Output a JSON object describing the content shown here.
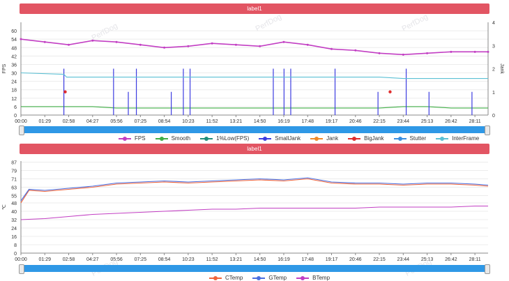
{
  "charts": [
    {
      "header": "label1",
      "watermark": "PerfDog"
    },
    {
      "header": "label1",
      "watermark": "PerfDog"
    }
  ],
  "chart_data": [
    {
      "type": "line",
      "title": "label1",
      "ylabel": "FPS",
      "y2label": "Jank",
      "ylim": [
        0,
        66
      ],
      "y_ticks": [
        0,
        6,
        12,
        18,
        24,
        30,
        36,
        42,
        48,
        54,
        60
      ],
      "y2lim": [
        0,
        4
      ],
      "y2_ticks": [
        0,
        1,
        2,
        3,
        4
      ],
      "x_ticks": [
        "00:00",
        "01:29",
        "02:58",
        "04:27",
        "05:56",
        "07:25",
        "08:54",
        "10:23",
        "11:52",
        "13:21",
        "14:50",
        "16:19",
        "17:48",
        "19:17",
        "20:46",
        "22:15",
        "23:44",
        "25:13",
        "26:42",
        "28:11"
      ],
      "legend_position": "bottom",
      "grid": true,
      "series": [
        {
          "name": "FPS",
          "color": "#c23ec3",
          "y_axis": "left",
          "x": [
            "00:00",
            "01:29",
            "02:58",
            "04:27",
            "05:56",
            "07:25",
            "08:54",
            "10:23",
            "11:52",
            "13:21",
            "14:50",
            "16:19",
            "17:48",
            "19:17",
            "20:46",
            "22:15",
            "23:44",
            "25:13",
            "26:42",
            "28:11",
            "29:00"
          ],
          "values": [
            54,
            52,
            50,
            53,
            52,
            50,
            48,
            49,
            51,
            50,
            49,
            52,
            50,
            47,
            46,
            44,
            43,
            44,
            45,
            45,
            45
          ]
        },
        {
          "name": "Smooth",
          "color": "#3fae45",
          "y_axis": "left",
          "x": [
            "00:00",
            "01:29",
            "02:58",
            "04:27",
            "05:56",
            "07:25",
            "08:54",
            "10:23",
            "11:52",
            "13:21",
            "14:50",
            "16:19",
            "17:48",
            "19:17",
            "20:46",
            "22:15",
            "23:44",
            "25:13",
            "26:42",
            "28:11",
            "29:00"
          ],
          "values": [
            6,
            6,
            6,
            6,
            5,
            5,
            5,
            5,
            5,
            5,
            5,
            5,
            5,
            5,
            5,
            5,
            6,
            6,
            5,
            5,
            5
          ]
        },
        {
          "name": "1%Low(FPS)",
          "color": "#1f8f7a",
          "y_axis": "left",
          "x": [
            "00:00",
            "01:29",
            "02:58",
            "04:27",
            "05:56",
            "07:25",
            "08:54",
            "10:23",
            "11:52",
            "13:21",
            "14:50",
            "16:19",
            "17:48",
            "19:17",
            "20:46",
            "22:15",
            "23:44",
            "25:13",
            "26:42",
            "28:11",
            "29:00"
          ],
          "values": [
            null,
            null,
            null,
            null,
            null,
            null,
            null,
            null,
            null,
            null,
            null,
            null,
            null,
            null,
            null,
            null,
            null,
            null,
            null,
            null,
            null
          ]
        },
        {
          "name": "SmallJank",
          "color": "#3c3ce0",
          "y_axis": "right",
          "x": [
            "02:40",
            "05:45",
            "06:40",
            "07:10",
            "09:20",
            "10:05",
            "10:30",
            "15:40",
            "16:20",
            "16:45",
            "19:30",
            "22:10",
            "23:55",
            "25:20",
            "28:00"
          ],
          "values": [
            2,
            2,
            1,
            2,
            1,
            2,
            2,
            2,
            2,
            2,
            2,
            1,
            2,
            1,
            1
          ]
        },
        {
          "name": "Jank",
          "color": "#f08a2a",
          "y_axis": "right",
          "x": [],
          "values": []
        },
        {
          "name": "BigJank",
          "color": "#e02d2d",
          "y_axis": "right",
          "x": [
            "02:45",
            "22:55"
          ],
          "values": [
            1,
            1
          ]
        },
        {
          "name": "Stutter",
          "color": "#3a8fe0",
          "y_axis": "right",
          "x": [],
          "values": []
        },
        {
          "name": "InterFrame",
          "color": "#5bc0d4",
          "y_axis": "left",
          "x": [
            "00:00",
            "02:40",
            "02:50",
            "05:56",
            "11:52",
            "17:48",
            "22:15",
            "23:44",
            "29:00"
          ],
          "values": [
            30,
            29,
            27,
            27,
            27,
            27,
            27,
            26,
            26
          ]
        }
      ]
    },
    {
      "type": "line",
      "title": "label1",
      "ylabel": "℃",
      "ylim": [
        0,
        88
      ],
      "y_ticks": [
        0,
        8,
        16,
        24,
        32,
        40,
        48,
        55,
        63,
        71,
        79,
        87
      ],
      "x_ticks": [
        "00:00",
        "01:29",
        "02:58",
        "04:27",
        "05:56",
        "07:25",
        "08:54",
        "10:23",
        "11:52",
        "13:21",
        "14:50",
        "16:19",
        "17:48",
        "19:17",
        "20:46",
        "22:15",
        "23:44",
        "25:13",
        "26:42",
        "28:11"
      ],
      "legend_position": "bottom",
      "grid": true,
      "series": [
        {
          "name": "CTemp",
          "color": "#f0643a",
          "x": [
            "00:00",
            "00:30",
            "01:29",
            "02:58",
            "04:27",
            "05:56",
            "07:25",
            "08:54",
            "10:23",
            "11:52",
            "13:21",
            "14:50",
            "16:19",
            "17:48",
            "19:17",
            "20:46",
            "22:15",
            "23:44",
            "25:13",
            "26:42",
            "28:11",
            "29:00"
          ],
          "values": [
            48,
            60,
            59,
            61,
            63,
            66,
            67,
            68,
            67,
            68,
            69,
            70,
            69,
            71,
            67,
            66,
            66,
            65,
            66,
            66,
            65,
            64
          ]
        },
        {
          "name": "GTemp",
          "color": "#4a6ee0",
          "x": [
            "00:00",
            "00:30",
            "01:29",
            "02:58",
            "04:27",
            "05:56",
            "07:25",
            "08:54",
            "10:23",
            "11:52",
            "13:21",
            "14:50",
            "16:19",
            "17:48",
            "19:17",
            "20:46",
            "22:15",
            "23:44",
            "25:13",
            "26:42",
            "28:11",
            "29:00"
          ],
          "values": [
            50,
            61,
            60,
            62,
            64,
            67,
            68,
            69,
            68,
            69,
            70,
            71,
            70,
            72,
            68,
            67,
            67,
            66,
            67,
            67,
            66,
            65
          ]
        },
        {
          "name": "BTemp",
          "color": "#c23ec3",
          "x": [
            "00:00",
            "01:29",
            "02:58",
            "04:27",
            "05:56",
            "07:25",
            "08:54",
            "10:23",
            "11:52",
            "13:21",
            "14:50",
            "16:19",
            "17:48",
            "19:17",
            "20:46",
            "22:15",
            "23:44",
            "25:13",
            "26:42",
            "28:11",
            "29:00"
          ],
          "values": [
            32,
            33,
            35,
            37,
            38,
            39,
            40,
            41,
            42,
            42,
            43,
            43,
            43,
            43,
            43,
            44,
            44,
            44,
            44,
            45,
            45
          ]
        }
      ]
    }
  ]
}
